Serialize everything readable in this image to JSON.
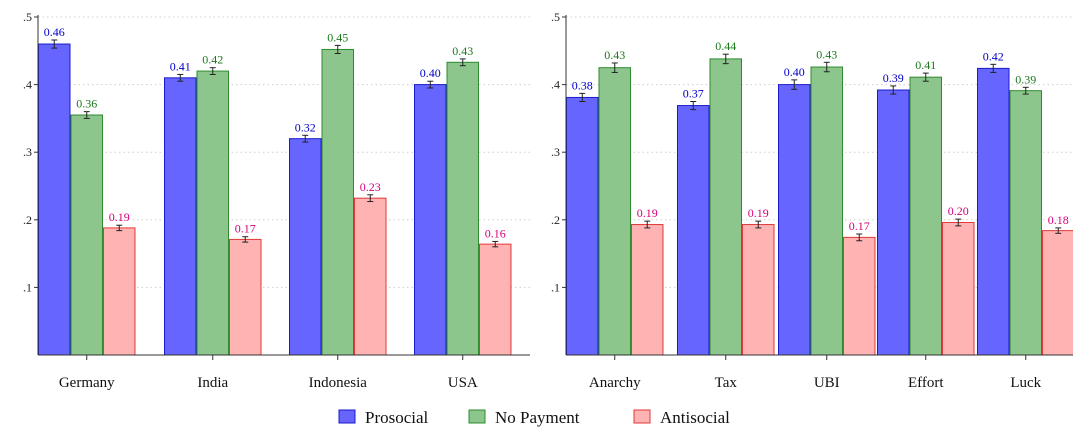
{
  "chart_data": [
    {
      "type": "bar",
      "categories": [
        "Germany",
        "India",
        "Indonesia",
        "USA"
      ],
      "series": [
        {
          "name": "Prosocial",
          "values": [
            0.46,
            0.41,
            0.32,
            0.4
          ],
          "labels": [
            "0.46",
            "0.41",
            "0.32",
            "0.40"
          ],
          "errors": [
            0.006,
            0.005,
            0.005,
            0.005
          ]
        },
        {
          "name": "No Payment",
          "values": [
            0.355,
            0.42,
            0.452,
            0.433
          ],
          "labels": [
            "0.36",
            "0.42",
            "0.45",
            "0.43"
          ],
          "errors": [
            0.005,
            0.005,
            0.006,
            0.005
          ]
        },
        {
          "name": "Antisocial",
          "values": [
            0.188,
            0.171,
            0.232,
            0.164
          ],
          "labels": [
            "0.19",
            "0.17",
            "0.23",
            "0.16"
          ],
          "errors": [
            0.004,
            0.004,
            0.005,
            0.004
          ]
        }
      ],
      "ylim": [
        0,
        0.5
      ],
      "yticks": [
        ".1",
        ".2",
        ".3",
        ".4",
        ".5"
      ],
      "grid": true
    },
    {
      "type": "bar",
      "categories": [
        "Anarchy",
        "Tax",
        "UBI",
        "Effort",
        "Luck"
      ],
      "series": [
        {
          "name": "Prosocial",
          "values": [
            0.381,
            0.369,
            0.4,
            0.392,
            0.424
          ],
          "labels": [
            "0.38",
            "0.37",
            "0.40",
            "0.39",
            "0.42"
          ],
          "errors": [
            0.006,
            0.006,
            0.007,
            0.006,
            0.006
          ]
        },
        {
          "name": "No Payment",
          "values": [
            0.425,
            0.438,
            0.426,
            0.411,
            0.391
          ],
          "labels": [
            "0.43",
            "0.44",
            "0.43",
            "0.41",
            "0.39"
          ],
          "errors": [
            0.007,
            0.007,
            0.007,
            0.006,
            0.005
          ]
        },
        {
          "name": "Antisocial",
          "values": [
            0.193,
            0.193,
            0.174,
            0.196,
            0.184
          ],
          "labels": [
            "0.19",
            "0.19",
            "0.17",
            "0.20",
            "0.18"
          ],
          "errors": [
            0.005,
            0.005,
            0.005,
            0.005,
            0.004
          ]
        }
      ],
      "ylim": [
        0,
        0.5
      ],
      "yticks": [
        ".1",
        ".2",
        ".3",
        ".4",
        ".5"
      ],
      "grid": true
    }
  ],
  "legend": {
    "placement": "bottom",
    "items": [
      {
        "label": "Prosocial",
        "fill": "#6666ff",
        "stroke": "#1a1acc"
      },
      {
        "label": "No Payment",
        "fill": "#8cc68c",
        "stroke": "#2e8b2e"
      },
      {
        "label": "Antisocial",
        "fill": "#ffb3b3",
        "stroke": "#e03a3a"
      }
    ]
  },
  "colors": {
    "series_fill": [
      "#6666ff",
      "#8cc68c",
      "#ffb3b3"
    ],
    "series_stroke": [
      "#1a1acc",
      "#2e8b2e",
      "#e03a3a"
    ],
    "label_text": [
      "#0000cc",
      "#1a7a1a",
      "#d6007a"
    ],
    "axis": "#333333",
    "grid": "#cfcfcf"
  }
}
